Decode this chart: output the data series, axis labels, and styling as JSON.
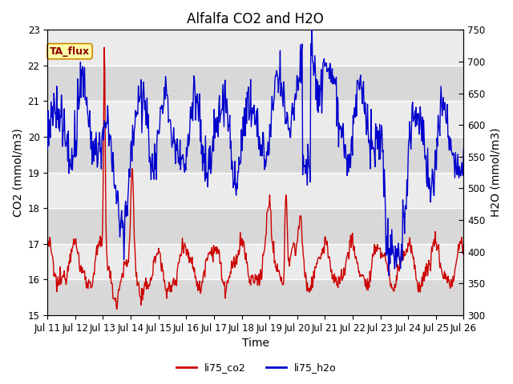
{
  "title": "Alfalfa CO2 and H2O",
  "xlabel": "Time",
  "ylabel_left": "CO2 (mmol/m3)",
  "ylabel_right": "H2O (mmol/m3)",
  "ylim_left": [
    15.0,
    23.0
  ],
  "ylim_right": [
    300,
    750
  ],
  "yticks_left": [
    15.0,
    16.0,
    17.0,
    18.0,
    19.0,
    20.0,
    21.0,
    22.0,
    23.0
  ],
  "yticks_right": [
    300,
    350,
    400,
    450,
    500,
    550,
    600,
    650,
    700,
    750
  ],
  "xtick_labels": [
    "Jul 11",
    "Jul 12",
    "Jul 13",
    "Jul 14",
    "Jul 15",
    "Jul 16",
    "Jul 17",
    "Jul 18",
    "Jul 19",
    "Jul 20",
    "Jul 21",
    "Jul 22",
    "Jul 23",
    "Jul 24",
    "Jul 25",
    "Jul 26"
  ],
  "annotation_text": "TA_flux",
  "annotation_bbox_facecolor": "#ffffaa",
  "annotation_bbox_edgecolor": "#cc8800",
  "legend_labels": [
    "li75_co2",
    "li75_h2o"
  ],
  "line_color_co2": "#cc0000",
  "line_color_h2o": "#0000cc",
  "line_width": 1.0,
  "bg_color_light": "#ebebeb",
  "bg_color_dark": "#d8d8d8",
  "fig_bg_color": "#ffffff",
  "title_fontsize": 12,
  "axis_label_fontsize": 10,
  "tick_fontsize": 8.5,
  "legend_fontsize": 9,
  "num_points": 720
}
